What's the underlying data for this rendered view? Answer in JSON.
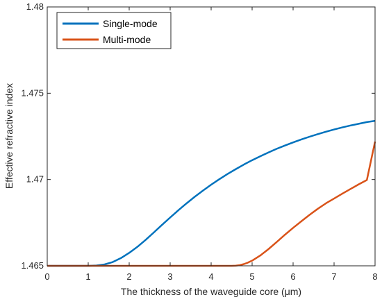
{
  "chart_data": {
    "type": "line",
    "title": "",
    "xlabel": "The thickness of the waveguide core (μm)",
    "ylabel": "Effective refractive index",
    "xlim": [
      0,
      8
    ],
    "ylim": [
      1.465,
      1.48
    ],
    "x_ticks": [
      0,
      1,
      2,
      3,
      4,
      5,
      6,
      7,
      8
    ],
    "x_tick_labels": [
      "0",
      "1",
      "2",
      "3",
      "4",
      "5",
      "6",
      "7",
      "8"
    ],
    "y_ticks": [
      1.465,
      1.47,
      1.475,
      1.48
    ],
    "y_tick_labels": [
      "1.465",
      "1.47",
      "1.475",
      "1.48"
    ],
    "grid": false,
    "legend_position": "top-left",
    "series": [
      {
        "name": "Single-mode",
        "color": "#0072BD",
        "x": [
          0,
          1.0,
          1.2,
          1.4,
          1.6,
          1.8,
          2.0,
          2.2,
          2.4,
          2.6,
          2.8,
          3.0,
          3.2,
          3.4,
          3.6,
          3.8,
          4.0,
          4.2,
          4.4,
          4.6,
          4.8,
          5.0,
          5.2,
          5.4,
          5.6,
          5.8,
          6.0,
          6.2,
          6.4,
          6.6,
          6.8,
          7.0,
          7.2,
          7.4,
          7.6,
          7.8,
          8.0
        ],
        "y": [
          1.465,
          1.465,
          1.46502,
          1.46508,
          1.46522,
          1.46545,
          1.46575,
          1.4661,
          1.4665,
          1.46693,
          1.46737,
          1.4678,
          1.46822,
          1.46862,
          1.469,
          1.46936,
          1.4697,
          1.47002,
          1.47032,
          1.4706,
          1.47087,
          1.47112,
          1.47135,
          1.47157,
          1.47178,
          1.47197,
          1.47215,
          1.47232,
          1.47248,
          1.47263,
          1.47277,
          1.4729,
          1.47302,
          1.47313,
          1.47323,
          1.47333,
          1.4734
        ]
      },
      {
        "name": "Multi-mode",
        "color": "#D95319",
        "x": [
          0,
          4.5,
          4.6,
          4.7,
          4.8,
          4.9,
          5.0,
          5.2,
          5.4,
          5.6,
          5.8,
          6.0,
          6.2,
          6.4,
          6.6,
          6.8,
          7.0,
          7.2,
          7.4,
          7.6,
          7.8,
          8.0
        ],
        "y": [
          1.465,
          1.465,
          1.46501,
          1.46504,
          1.4651,
          1.46519,
          1.4653,
          1.4656,
          1.46597,
          1.46638,
          1.4668,
          1.4672,
          1.46758,
          1.46795,
          1.4683,
          1.46862,
          1.4689,
          1.46918,
          1.46945,
          1.46972,
          1.46997,
          1.4722
        ]
      }
    ]
  }
}
